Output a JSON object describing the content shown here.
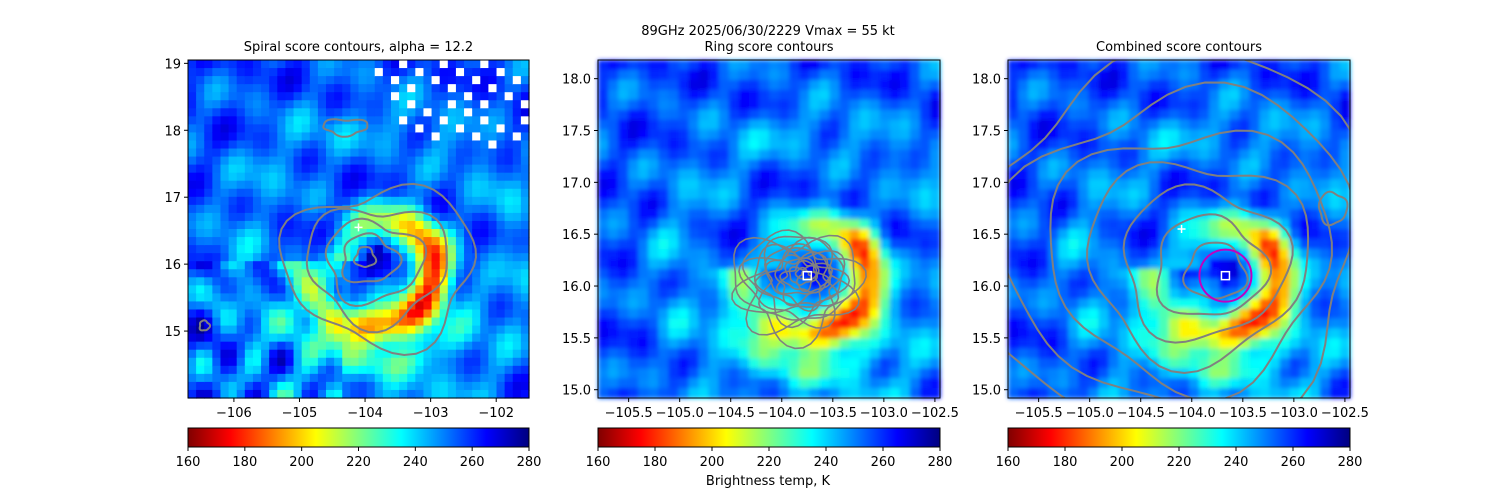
{
  "suptitle_line1": "89GHz  2025/06/30/2229    Vmax = 55 kt",
  "colorbar_label": "Brightness temp, K",
  "colormap_colors": [
    "#800000",
    "#ff0000",
    "#ff8000",
    "#ffff00",
    "#80ff80",
    "#00ffff",
    "#0080ff",
    "#0000ff",
    "#000080"
  ],
  "contour_color": "#808080",
  "marker_color": "#ffffff",
  "ring_color": "#c000c0",
  "chart_data": [
    {
      "type": "heatmap",
      "title": "Spiral score contours, alpha = 12.2",
      "xlim": [
        -106.7,
        -101.5
      ],
      "ylim": [
        14.0,
        19.05
      ],
      "xticks": [
        -106,
        -105,
        -104,
        -103,
        -102
      ],
      "xtick_labels": [
        "−106",
        "−105",
        "−104",
        "−103",
        "−102"
      ],
      "yticks": [
        15,
        16,
        17,
        18,
        19
      ],
      "ytick_labels": [
        "15",
        "16",
        "17",
        "18",
        "19"
      ],
      "center_marker": {
        "x": -104.1,
        "y": 16.55
      },
      "eye_center": {
        "x": -104.0,
        "y": 16.1
      },
      "colorbar": {
        "min": 160,
        "max": 280,
        "ticks": [
          160,
          180,
          200,
          220,
          240,
          260,
          280
        ],
        "tick_labels": [
          "160",
          "180",
          "200",
          "220",
          "240",
          "260",
          "280"
        ]
      }
    },
    {
      "type": "heatmap",
      "title": "Ring score contours",
      "xlim": [
        -105.8,
        -102.45
      ],
      "ylim": [
        14.92,
        18.18
      ],
      "xticks": [
        -105.5,
        -105.0,
        -104.5,
        -104.0,
        -103.5,
        -103.0,
        -102.5
      ],
      "xtick_labels": [
        "−105.5",
        "−105.0",
        "−104.5",
        "−104.0",
        "−103.5",
        "−103.0",
        "−102.5"
      ],
      "yticks": [
        15.0,
        15.5,
        16.0,
        16.5,
        17.0,
        17.5,
        18.0
      ],
      "ytick_labels": [
        "15.0",
        "15.5",
        "16.0",
        "16.5",
        "17.0",
        "17.5",
        "18.0"
      ],
      "square_marker": {
        "x": -103.75,
        "y": 16.1
      },
      "colorbar": {
        "min": 160,
        "max": 280,
        "ticks": [
          160,
          180,
          200,
          220,
          240,
          260,
          280
        ],
        "tick_labels": [
          "160",
          "180",
          "200",
          "220",
          "240",
          "260",
          "280"
        ]
      }
    },
    {
      "type": "heatmap",
      "title": "Combined score contours",
      "xlim": [
        -105.8,
        -102.45
      ],
      "ylim": [
        14.92,
        18.18
      ],
      "xticks": [
        -105.5,
        -105.0,
        -104.5,
        -104.0,
        -103.5,
        -103.0,
        -102.5
      ],
      "xtick_labels": [
        "−105.5",
        "−105.0",
        "−104.5",
        "−104.0",
        "−103.5",
        "−103.0",
        "−102.5"
      ],
      "yticks": [
        15.0,
        15.5,
        16.0,
        16.5,
        17.0,
        17.5,
        18.0
      ],
      "ytick_labels": [
        "15.0",
        "15.5",
        "16.0",
        "16.5",
        "17.0",
        "17.5",
        "18.0"
      ],
      "center_marker": {
        "x": -104.1,
        "y": 16.55
      },
      "square_marker": {
        "x": -103.67,
        "y": 16.1
      },
      "ring_center": {
        "x": -103.67,
        "y": 16.1
      },
      "colorbar": {
        "min": 160,
        "max": 280,
        "ticks": [
          160,
          180,
          200,
          220,
          240,
          260,
          280
        ],
        "tick_labels": [
          "160",
          "180",
          "200",
          "220",
          "240",
          "260",
          "280"
        ]
      }
    }
  ]
}
